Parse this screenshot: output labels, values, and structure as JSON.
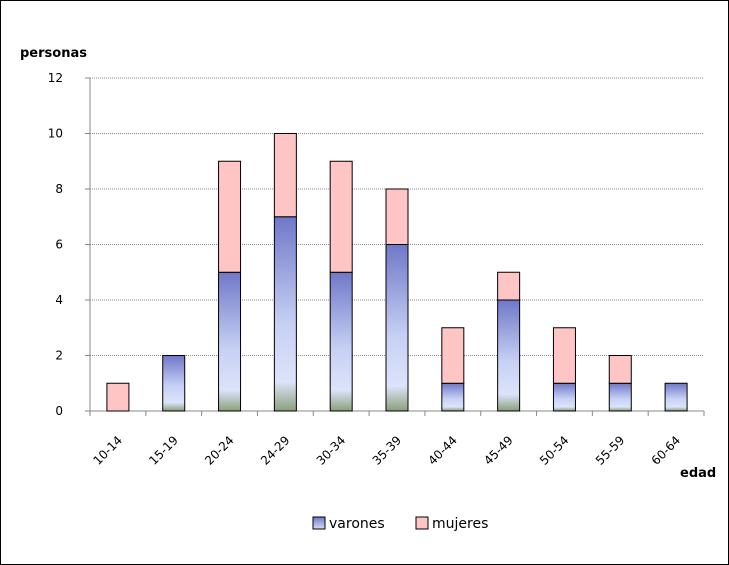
{
  "chart_data": {
    "type": "bar",
    "stacked": true,
    "title": "",
    "ylabel": "personas",
    "xlabel": "edad",
    "ylim": [
      0,
      12
    ],
    "yticks": [
      0,
      2,
      4,
      6,
      8,
      10,
      12
    ],
    "categories": [
      "10-14",
      "15-19",
      "20-24",
      "24-29",
      "30-34",
      "35-39",
      "40-44",
      "45-49",
      "50-54",
      "55-59",
      "60-64"
    ],
    "series": [
      {
        "name": "varones",
        "values": [
          0,
          2,
          5,
          7,
          5,
          6,
          1,
          4,
          1,
          1,
          1
        ],
        "color": "#9aa3e0"
      },
      {
        "name": "mujeres",
        "values": [
          1,
          0,
          4,
          3,
          4,
          2,
          2,
          1,
          2,
          1,
          0
        ],
        "color": "#ffc4c4"
      }
    ],
    "grid": true,
    "legend": "bottom"
  }
}
